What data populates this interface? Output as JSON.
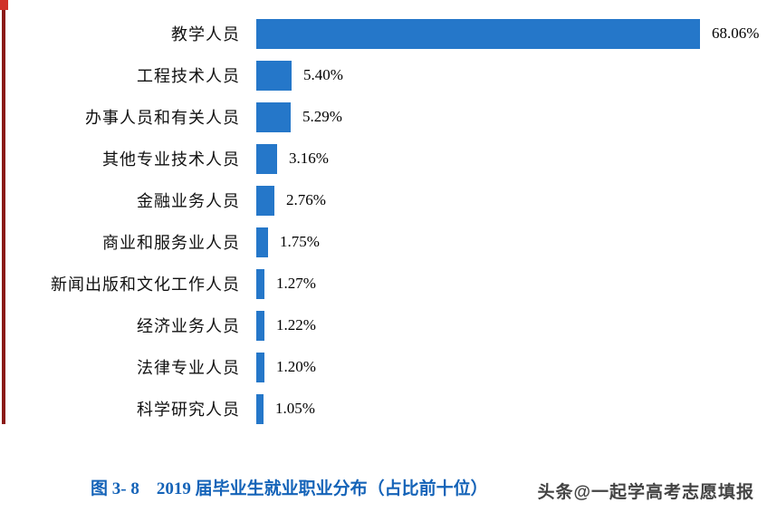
{
  "chart_data": {
    "type": "bar",
    "orientation": "horizontal",
    "categories": [
      "教学人员",
      "工程技术人员",
      "办事人员和有关人员",
      "其他专业技术人员",
      "金融业务人员",
      "商业和服务业人员",
      "新闻出版和文化工作人员",
      "经济业务人员",
      "法律专业人员",
      "科学研究人员"
    ],
    "values": [
      68.06,
      5.4,
      5.29,
      3.16,
      2.76,
      1.75,
      1.27,
      1.22,
      1.2,
      1.05
    ],
    "value_labels": [
      "68.06%",
      "5.40%",
      "5.29%",
      "3.16%",
      "2.76%",
      "1.75%",
      "1.27%",
      "1.22%",
      "1.20%",
      "1.05%"
    ],
    "title": "图 3- 8　2019 届毕业生就业职业分布（占比前十位）",
    "xlabel": "",
    "ylabel": "",
    "xlim": [
      0,
      70
    ],
    "grid": false,
    "legend": false,
    "bar_color": "#2577c9"
  },
  "caption": {
    "text": "图 3- 8　2019 届毕业生就业职业分布（占比前十位）"
  },
  "watermark": {
    "text": "头条@一起学高考志愿填报"
  },
  "decorations": {
    "left_accent_color": "#8b1a17",
    "corner_mark_color": "#d03028",
    "caption_color": "#1463b8"
  }
}
